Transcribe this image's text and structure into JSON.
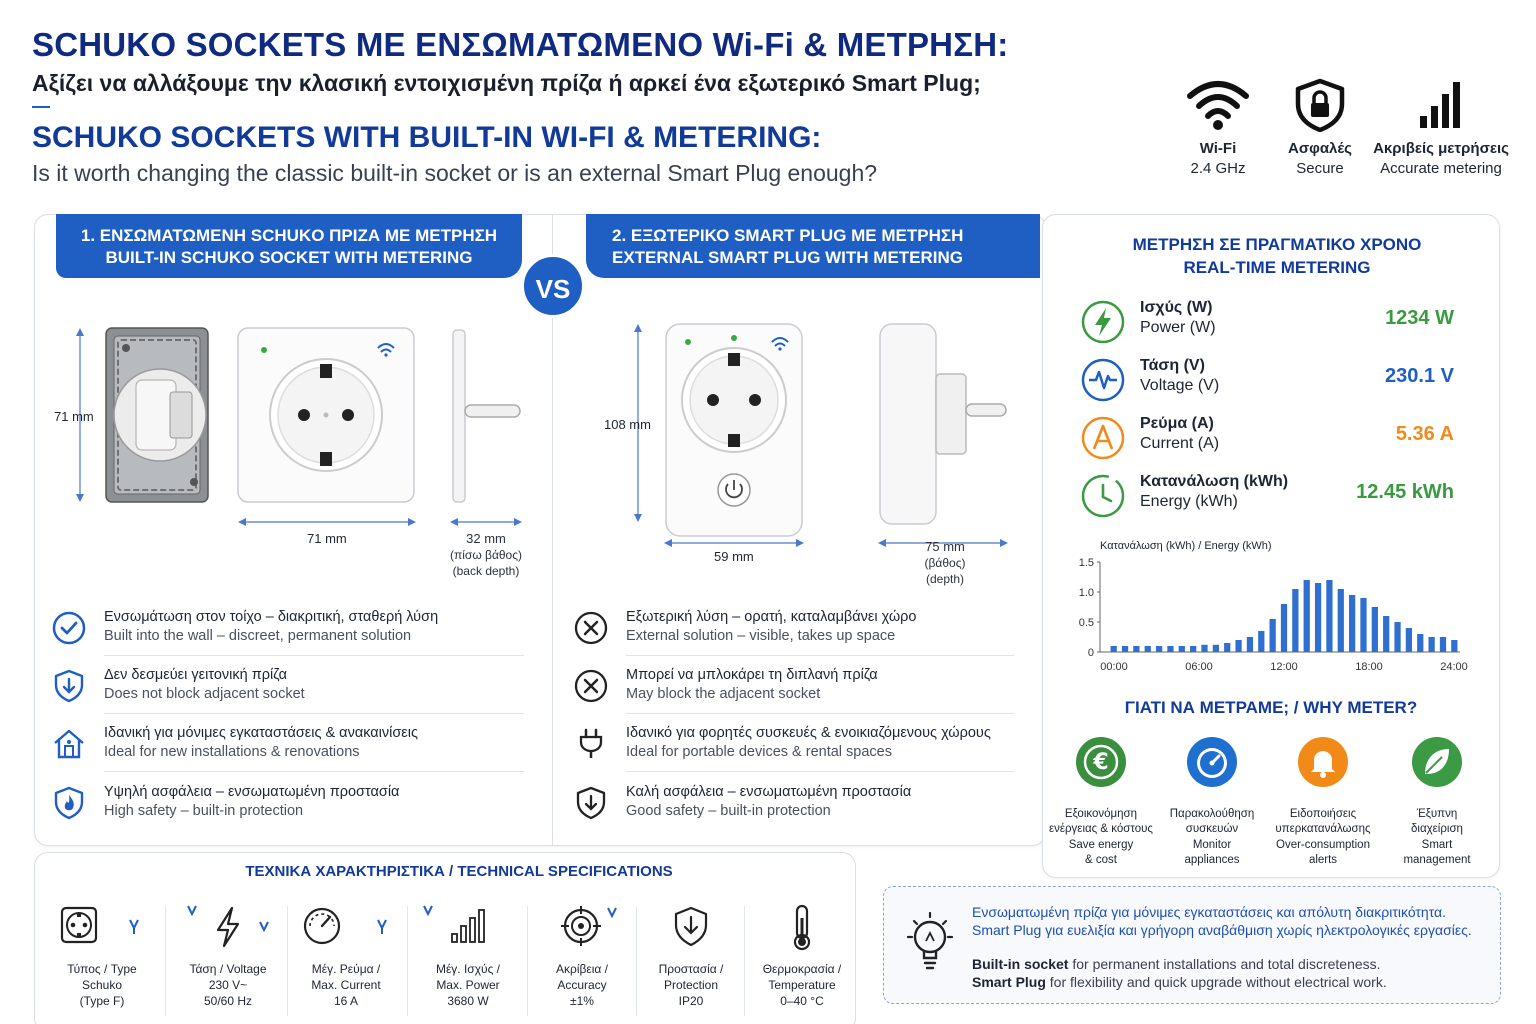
{
  "header": {
    "title_gr": "SCHUKO SOCKETS ΜΕ ΕΝΣΩΜΑΤΩΜΕΝΟ Wi-Fi & ΜΕΤΡΗΣΗ:",
    "subtitle_gr": "Αξίζει να αλλάξουμε την κλασική εντοιχισμένη πρίζα ή αρκεί ένα εξωτερικό Smart Plug;",
    "title_en": "SCHUKO SOCKETS WITH BUILT-IN WI-FI & METERING:",
    "subtitle_en": "Is it worth changing the classic built-in socket or is an external Smart Plug enough?"
  },
  "features": [
    {
      "icon": "wifi-icon",
      "label1": "Wi-Fi",
      "label2": "2.4 GHz"
    },
    {
      "icon": "shield-lock-icon",
      "label1": "Ασφαλές",
      "label2": "Secure"
    },
    {
      "icon": "signal-bars-icon",
      "label1": "Ακριβείς μετρήσεις",
      "label2": "Accurate metering"
    }
  ],
  "builtin": {
    "tab_gr": "1. ΕΝΣΩΜΑΤΩΜΕΝΗ SCHUKO ΠΡΙΖΑ ΜΕ ΜΕΤΡΗΣΗ",
    "tab_en": "BUILT-IN SCHUKO SOCKET WITH METERING",
    "dim_height": "71 mm",
    "dim_width": "71 mm",
    "dim_depth": "32 mm",
    "dim_depth_gr": "(πίσω βάθος)",
    "dim_depth_en": "(back depth)",
    "points": [
      {
        "icon": "check-circle-icon",
        "gr": "Ενσωμάτωση στον τοίχο – διακριτική, σταθερή λύση",
        "en": "Built into the wall – discreet, permanent solution"
      },
      {
        "icon": "shield-down-icon",
        "gr": "Δεν δεσμεύει γειτονική πρίζα",
        "en": "Does not block adjacent socket"
      },
      {
        "icon": "house-icon",
        "gr": "Ιδανική για μόνιμες εγκαταστάσεις & ανακαινίσεις",
        "en": "Ideal for new installations & renovations"
      },
      {
        "icon": "shield-flame-icon",
        "gr": "Υψηλή ασφάλεια – ενσωματωμένη προστασία",
        "en": "High safety – built-in protection"
      }
    ]
  },
  "vs_label": "VS",
  "external": {
    "tab_gr": "2. ΕΞΩΤΕΡΙΚΟ SMART PLUG ΜΕ ΜΕΤΡΗΣΗ",
    "tab_en": "EXTERNAL SMART PLUG WITH METERING",
    "dim_height": "108 mm",
    "dim_width": "59 mm",
    "dim_depth": "75 mm",
    "dim_depth_gr": "(βάθος)",
    "dim_depth_en": "(depth)",
    "points": [
      {
        "icon": "x-circle-icon",
        "gr": "Εξωτερική λύση – ορατή, καταλαμβάνει χώρο",
        "en": "External solution – visible, takes up space"
      },
      {
        "icon": "x-circle-icon",
        "gr": "Μπορεί να μπλοκάρει τη διπλανή πρίζα",
        "en": "May block the adjacent socket"
      },
      {
        "icon": "plug-icon",
        "gr": "Ιδανικό για φορητές συσκευές & ενοικιαζόμενους χώρους",
        "en": "Ideal for portable devices & rental spaces"
      },
      {
        "icon": "shield-down-icon",
        "gr": "Καλή ασφάλεια – ενσωματωμένη προστασία",
        "en": "Good safety – built-in protection"
      }
    ]
  },
  "metering": {
    "title_gr": "ΜΕΤΡΗΣΗ ΣΕ ΠΡΑΓΜΑΤΙΚΟ ΧΡΟΝΟ",
    "title_en": "REAL-TIME METERING",
    "rows": [
      {
        "icon": "bolt-icon",
        "color": "#3a9a3f",
        "gr": "Ισχύς (W)",
        "en": "Power (W)",
        "value": "1234 W"
      },
      {
        "icon": "pulse-icon",
        "color": "#1f5fc4",
        "gr": "Τάση (V)",
        "en": "Voltage (V)",
        "value": "230.1 V"
      },
      {
        "icon": "ampere-icon",
        "color": "#f08a1c",
        "gr": "Ρεύμα (A)",
        "en": "Current (A)",
        "value": "5.36 A"
      },
      {
        "icon": "energy-clock-icon",
        "color": "#3a9a3f",
        "gr": "Κατανάλωση (kWh)",
        "en": "Energy (kWh)",
        "value": "12.45 kWh"
      }
    ]
  },
  "chart_data": {
    "type": "bar",
    "title": "Κατανάλωση (kWh) / Energy (kWh)",
    "xlabel": "",
    "ylabel": "",
    "ylim": [
      0,
      1.5
    ],
    "yticks": [
      "1.5",
      "1.0",
      "0.5",
      "0"
    ],
    "xticks": [
      "00:00",
      "06:00",
      "12:00",
      "18:00",
      "24:00"
    ],
    "values": [
      0.1,
      0.1,
      0.1,
      0.1,
      0.1,
      0.1,
      0.1,
      0.1,
      0.12,
      0.12,
      0.15,
      0.2,
      0.25,
      0.35,
      0.55,
      0.8,
      1.05,
      1.2,
      1.15,
      1.2,
      1.05,
      0.95,
      0.9,
      0.75,
      0.6,
      0.5,
      0.4,
      0.3,
      0.25,
      0.25,
      0.2
    ]
  },
  "why": {
    "title": "ΓΙΑΤΙ ΝΑ ΜΕΤΡΑΜΕ; / WHY METER?",
    "items": [
      {
        "icon": "euro-icon",
        "color": "#3a8f3f",
        "gr1": "Εξοικονόμηση",
        "gr2": "ενέργειας & κόστους",
        "en1": "Save energy",
        "en2": "& cost"
      },
      {
        "icon": "gauge-icon",
        "color": "#1f6fd0",
        "gr1": "Παρακολούθηση",
        "gr2": "συσκευών",
        "en1": "Monitor",
        "en2": "appliances"
      },
      {
        "icon": "bell-icon",
        "color": "#f28a1a",
        "gr1": "Ειδοποιήσεις",
        "gr2": "υπερκατανάλωσης",
        "en1": "Over-consumption",
        "en2": "alerts"
      },
      {
        "icon": "leaf-icon",
        "color": "#3c9a44",
        "gr1": "Έξυπνη",
        "gr2": "διαχείριση",
        "en1": "Smart",
        "en2": "management"
      }
    ]
  },
  "specs": {
    "title": "ΤΕΧΝΙΚΑ ΧΑΡΑΚΤΗΡΙΣΤΙΚΑ / TECHNICAL SPECIFICATIONS",
    "items": [
      {
        "icon": "socket-type-icon",
        "l1": "Τύπος / Type",
        "l2": "Schuko",
        "l3": "(Type F)"
      },
      {
        "icon": "voltage-bolt-icon",
        "l1": "Τάση / Voltage",
        "l2": "230 V~",
        "l3": "50/60 Hz"
      },
      {
        "icon": "gauge-current-icon",
        "l1": "Μέγ. Ρεύμα /",
        "l2": "Max. Current",
        "l3": "16 A"
      },
      {
        "icon": "power-bars-icon",
        "l1": "Μέγ. Ισχύς /",
        "l2": "Max. Power",
        "l3": "3680 W"
      },
      {
        "icon": "target-icon",
        "l1": "Ακρίβεια /",
        "l2": "Accuracy",
        "l3": "±1%"
      },
      {
        "icon": "protection-shield-icon",
        "l1": "Προστασία /",
        "l2": "Protection",
        "l3": "IP20"
      },
      {
        "icon": "thermometer-icon",
        "l1": "Θερμοκρασία /",
        "l2": "Temperature",
        "l3": "0–40 °C"
      }
    ]
  },
  "tip": {
    "gr1": "Ενσωματωμένη πρίζα για μόνιμες εγκαταστάσεις και απόλυτη διακριτικότητα.",
    "gr2": "Smart Plug για ευελιξία και γρήγορη αναβάθμιση χωρίς ηλεκτρολογικές εργασίες.",
    "en1_bold": "Built-in socket",
    "en1_rest": " for permanent installations and total discreteness.",
    "en2_bold": "Smart Plug",
    "en2_rest": " for flexibility and quick upgrade without electrical work."
  }
}
